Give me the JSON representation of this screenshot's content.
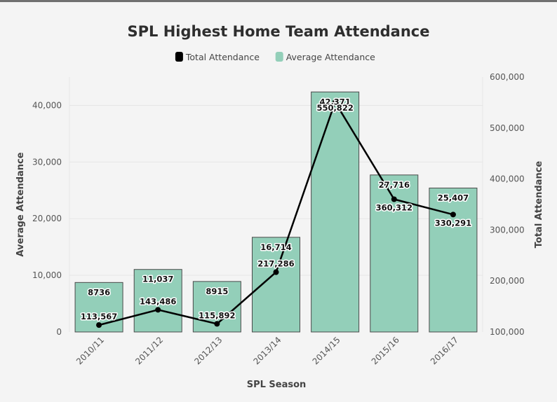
{
  "chart_data": {
    "type": "bar",
    "title": "SPL Highest Home Team Attendance",
    "xlabel": "SPL Season",
    "ylabel_left": "Average Attendance",
    "ylabel_right": "Total Attendance",
    "categories": [
      "2010/11",
      "2011/12",
      "2012/13",
      "2013/14",
      "2014/15",
      "2015/16",
      "2016/17"
    ],
    "legend": [
      {
        "name": "Total Attendance",
        "color": "#000000",
        "kind": "line"
      },
      {
        "name": "Average Attendance",
        "color": "#93cfb9",
        "kind": "bar"
      }
    ],
    "series": [
      {
        "name": "Average Attendance",
        "type": "bar",
        "axis": "left",
        "values": [
          8736,
          11037,
          8915,
          16714,
          42371,
          27716,
          25407
        ],
        "labels": [
          "8736",
          "11,037",
          "8915",
          "16,714",
          "42,371",
          "27,716",
          "25,407"
        ]
      },
      {
        "name": "Total Attendance",
        "type": "line",
        "axis": "right",
        "values": [
          113567,
          143486,
          115892,
          217286,
          550822,
          360312,
          330291
        ],
        "labels": [
          "113,567",
          "143,486",
          "115,892",
          "217,286",
          "550,822",
          "360,312",
          "330,291"
        ]
      }
    ],
    "left_axis": {
      "min": 0,
      "max": 45000,
      "ticks": [
        0,
        10000,
        20000,
        30000,
        40000
      ],
      "tick_labels": [
        "0",
        "10,000",
        "20,000",
        "30,000",
        "40,000"
      ]
    },
    "right_axis": {
      "min": 100000,
      "max": 600000,
      "ticks": [
        100000,
        200000,
        300000,
        400000,
        500000,
        600000
      ],
      "tick_labels": [
        "100,000",
        "200,000",
        "300,000",
        "400,000",
        "500,000",
        "600,000"
      ]
    },
    "grid": true,
    "legend_position": "top-center"
  }
}
